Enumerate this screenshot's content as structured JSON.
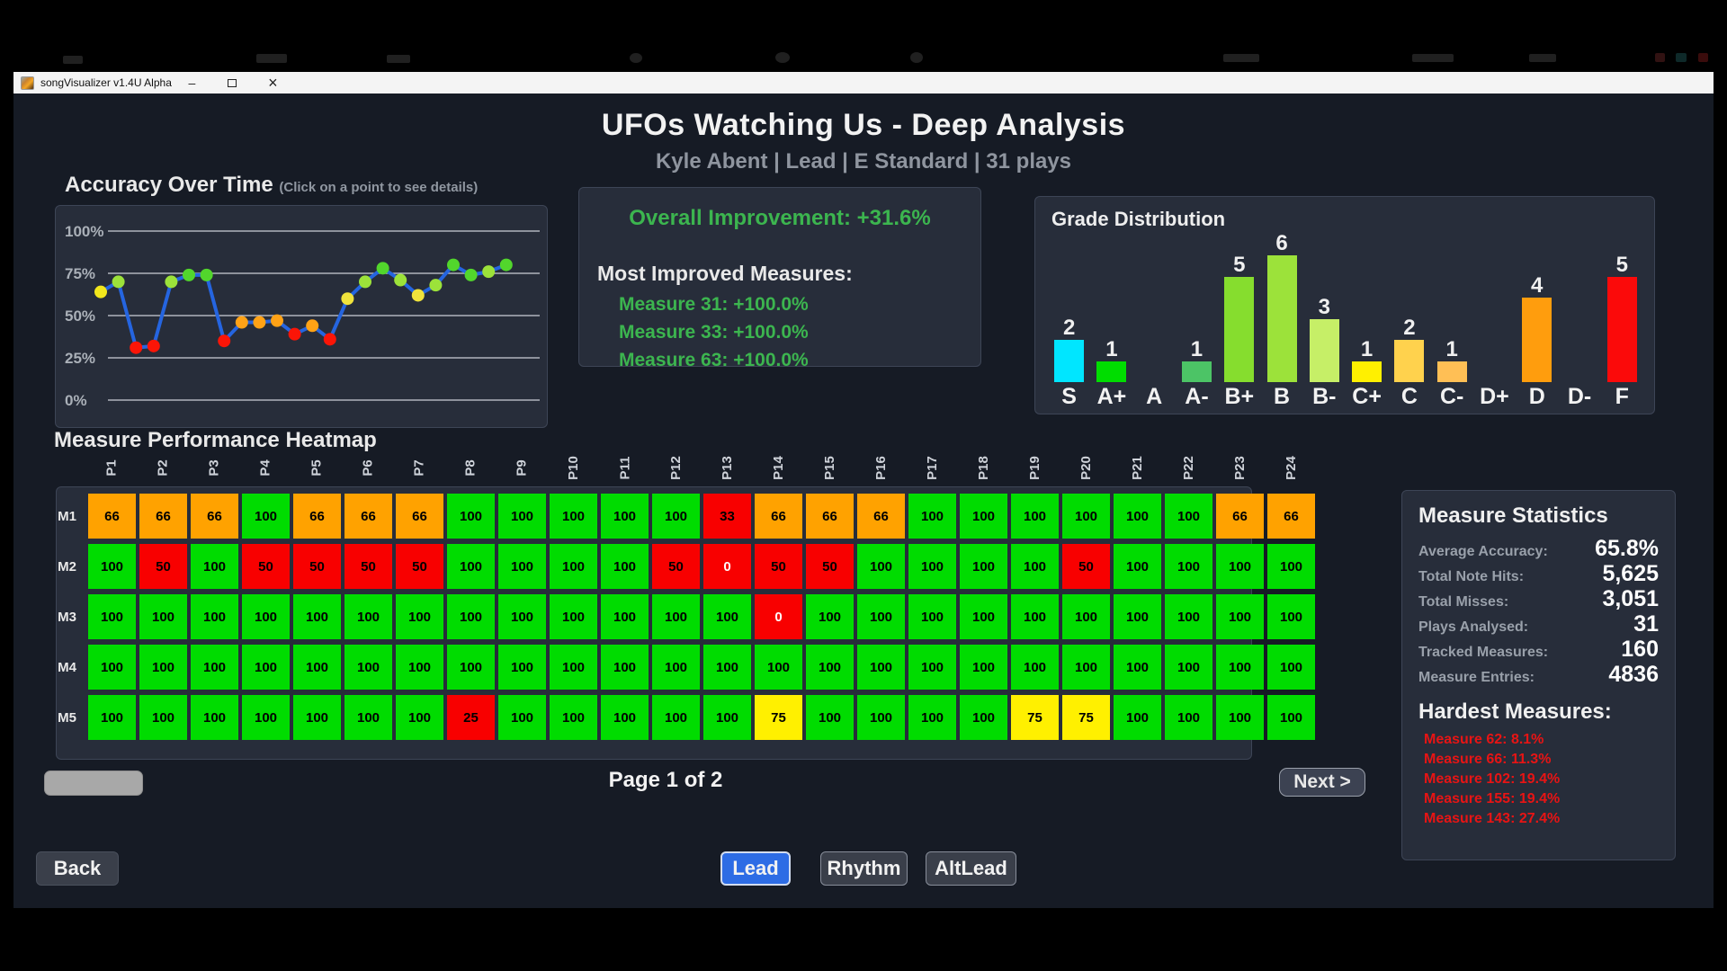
{
  "window": {
    "title": "songVisualizer v1.4U Alpha",
    "controls": {
      "minimize": "–",
      "close": "×"
    }
  },
  "header": {
    "title": "UFOs Watching Us - Deep Analysis",
    "subtitle": "Kyle Abent | Lead | E Standard | 31 plays"
  },
  "accuracy": {
    "heading": "Accuracy Over Time",
    "hint": "(Click on a point to see details)"
  },
  "improvement": {
    "title": "Overall Improvement: +31.6%",
    "subtitle": "Most Improved Measures:",
    "items": [
      "Measure 31: +100.0%",
      "Measure 33: +100.0%",
      "Measure 63: +100.0%"
    ]
  },
  "chart_data": [
    {
      "type": "line",
      "title": "Accuracy Over Time",
      "xlabel": "play index",
      "ylabel": "accuracy %",
      "ylim": [
        0,
        100
      ],
      "yticks": [
        {
          "v": 100,
          "label": "100%"
        },
        {
          "v": 75,
          "label": "75%"
        },
        {
          "v": 50,
          "label": "50%"
        },
        {
          "v": 25,
          "label": "25%"
        },
        {
          "v": 0,
          "label": "0%"
        }
      ],
      "grid": true,
      "line_color": "#2565e0",
      "values": [
        64,
        70,
        31,
        32,
        70,
        74,
        74,
        35,
        46,
        46,
        47,
        39,
        44,
        36,
        60,
        70,
        78,
        71,
        62,
        68,
        80,
        74,
        76,
        80
      ],
      "point_colors": [
        "#f2e71c",
        "#9ce23a",
        "#fb1507",
        "#fb1507",
        "#9ce23a",
        "#52d62c",
        "#52d62c",
        "#fb1507",
        "#ffa216",
        "#ffa216",
        "#ffa216",
        "#fb1507",
        "#ffa216",
        "#fb1507",
        "#f0e33c",
        "#9ce23a",
        "#52d62c",
        "#9ce23a",
        "#f0e33c",
        "#9ce23a",
        "#52d62c",
        "#52d62c",
        "#9ce23a",
        "#52d62c"
      ]
    },
    {
      "type": "bar",
      "title": "Grade Distribution",
      "categories": [
        "S",
        "A+",
        "A",
        "A-",
        "B+",
        "B",
        "B-",
        "C+",
        "C",
        "C-",
        "D+",
        "D",
        "D-",
        "F"
      ],
      "values": [
        2,
        1,
        0,
        1,
        5,
        6,
        3,
        1,
        2,
        1,
        0,
        4,
        0,
        5
      ],
      "colors": [
        "#00e6ff",
        "#00dd00",
        "#00dd00",
        "#4cc466",
        "#86dd2e",
        "#9ce23a",
        "#c6ef67",
        "#fff000",
        "#ffd24d",
        "#ffbf55",
        "#ffb347",
        "#ff9d0d",
        "#ff7a1a",
        "#fb0a0a"
      ],
      "ylim": [
        0,
        6
      ],
      "grid": false,
      "value_labels": "above bars"
    },
    {
      "type": "heatmap",
      "title": "Measure Performance Heatmap",
      "columns": [
        "P1",
        "P2",
        "P3",
        "P4",
        "P5",
        "P6",
        "P7",
        "P8",
        "P9",
        "P10",
        "P11",
        "P12",
        "P13",
        "P14",
        "P15",
        "P16",
        "P17",
        "P18",
        "P19",
        "P20",
        "P21",
        "P22",
        "P23",
        "P24"
      ],
      "rows": [
        "M1",
        "M2",
        "M3",
        "M4",
        "M5"
      ],
      "values": [
        [
          66,
          66,
          66,
          100,
          66,
          66,
          66,
          100,
          100,
          100,
          100,
          100,
          33,
          66,
          66,
          66,
          100,
          100,
          100,
          100,
          100,
          100,
          66,
          66
        ],
        [
          100,
          50,
          100,
          50,
          50,
          50,
          50,
          100,
          100,
          100,
          100,
          50,
          0,
          50,
          50,
          100,
          100,
          100,
          100,
          50,
          100,
          100,
          100,
          100
        ],
        [
          100,
          100,
          100,
          100,
          100,
          100,
          100,
          100,
          100,
          100,
          100,
          100,
          100,
          0,
          100,
          100,
          100,
          100,
          100,
          100,
          100,
          100,
          100,
          100
        ],
        [
          100,
          100,
          100,
          100,
          100,
          100,
          100,
          100,
          100,
          100,
          100,
          100,
          100,
          100,
          100,
          100,
          100,
          100,
          100,
          100,
          100,
          100,
          100,
          100
        ],
        [
          100,
          100,
          100,
          100,
          100,
          100,
          100,
          25,
          100,
          100,
          100,
          100,
          100,
          75,
          100,
          100,
          100,
          100,
          75,
          75,
          100,
          100,
          100,
          100
        ]
      ],
      "color_scale": [
        {
          "min": 90,
          "color": "#00dc00"
        },
        {
          "min": 70,
          "color": "#fff000"
        },
        {
          "min": 60,
          "color": "#ffa200"
        },
        {
          "min": 0,
          "color": "#f80000"
        }
      ]
    }
  ],
  "grade_panel": {
    "title": "Grade Distribution"
  },
  "heatmap_heading": "Measure Performance Heatmap",
  "pagination": {
    "label": "Page 1 of 2",
    "next": "Next >"
  },
  "stats": {
    "title": "Measure Statistics",
    "rows": [
      {
        "label": "Average Accuracy:",
        "value": "65.8%"
      },
      {
        "label": "Total Note Hits:",
        "value": "5,625"
      },
      {
        "label": "Total Misses:",
        "value": "3,051"
      },
      {
        "label": "Plays Analysed:",
        "value": "31"
      },
      {
        "label": "Tracked Measures:",
        "value": "160"
      },
      {
        "label": "Measure Entries:",
        "value": "4836"
      }
    ],
    "hardest_title": "Hardest Measures:",
    "hardest": [
      "Measure 62: 8.1%",
      "Measure 66: 11.3%",
      "Measure 102: 19.4%",
      "Measure 155: 19.4%",
      "Measure 143: 27.4%"
    ]
  },
  "footer": {
    "back": "Back",
    "tabs": [
      {
        "label": "Lead",
        "active": true
      },
      {
        "label": "Rhythm",
        "active": false
      },
      {
        "label": "AltLead",
        "active": false
      }
    ]
  },
  "colors": {
    "accent_green": "#3cb54f",
    "hardest_red": "#e81414",
    "active_tab_blue": "#2d6ce5",
    "panel_bg": "#272d3a",
    "content_bg": "#161b25"
  }
}
